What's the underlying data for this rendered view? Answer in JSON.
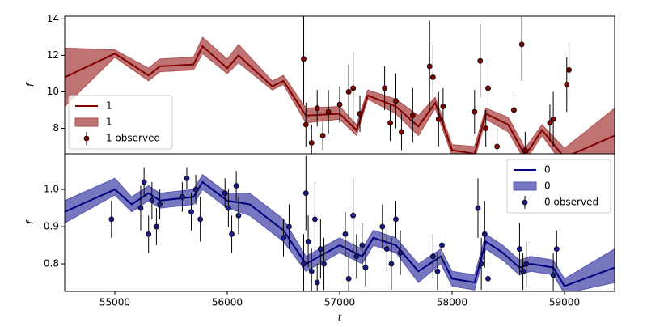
{
  "chart_data": [
    {
      "type": "line",
      "ylabel": "f",
      "xlim": [
        54554,
        59446
      ],
      "ylim": [
        6.6,
        14.15
      ],
      "yticks": [
        8,
        10,
        12,
        14
      ],
      "legend": "lower left",
      "x": [
        54554,
        55000,
        55300,
        55400,
        55700,
        55780,
        56000,
        56100,
        56400,
        56500,
        56700,
        57000,
        57150,
        57250,
        57500,
        57700,
        57850,
        58000,
        58200,
        58300,
        58500,
        58650,
        58800,
        59000,
        59446
      ],
      "series": [
        {
          "name": "1",
          "color": "#800000",
          "values": [
            10.8,
            12.1,
            10.9,
            11.4,
            11.5,
            12.5,
            11.3,
            12.0,
            10.3,
            10.6,
            8.7,
            8.8,
            7.9,
            9.8,
            9.2,
            8.1,
            9.4,
            6.8,
            6.6,
            8.8,
            8.2,
            6.5,
            7.9,
            6.4,
            7.6
          ]
        }
      ],
      "band": {
        "name": "1",
        "color": "#b05050",
        "lower": [
          9.2,
          11.9,
          10.6,
          11.1,
          11.2,
          12.1,
          11.0,
          11.6,
          10.1,
          10.4,
          8.3,
          8.5,
          7.6,
          9.6,
          8.8,
          7.6,
          9.1,
          6.5,
          6.3,
          8.5,
          7.8,
          6.2,
          7.6,
          5.9,
          6.1
        ],
        "upper": [
          12.4,
          12.3,
          11.3,
          11.8,
          11.9,
          13.0,
          11.8,
          12.6,
          10.6,
          10.9,
          9.1,
          9.2,
          8.2,
          10.1,
          9.6,
          8.7,
          9.7,
          7.1,
          7.0,
          9.1,
          8.6,
          6.9,
          8.2,
          6.9,
          9.1
        ]
      },
      "observed": {
        "name": "1 observed",
        "color": "#800000",
        "x": [
          56680,
          56700,
          56750,
          56800,
          56850,
          56900,
          57000,
          57080,
          57120,
          57180,
          57400,
          57450,
          57500,
          57550,
          57650,
          57800,
          57830,
          57880,
          57920,
          58200,
          58250,
          58300,
          58320,
          58400,
          58550,
          58620,
          58650,
          58870,
          58900,
          59020,
          59040
        ],
        "values": [
          11.8,
          8.2,
          7.2,
          9.1,
          7.6,
          8.9,
          9.3,
          10.0,
          10.2,
          8.8,
          10.2,
          8.3,
          9.5,
          7.8,
          8.7,
          11.4,
          10.8,
          8.5,
          9.2,
          8.9,
          11.7,
          8.0,
          10.2,
          7.0,
          9.0,
          12.6,
          6.8,
          8.3,
          8.5,
          10.4,
          11.2
        ],
        "errors": [
          2.5,
          1.2,
          1.0,
          1.0,
          0.8,
          1.2,
          1.0,
          1.5,
          2.0,
          1.0,
          1.2,
          1.0,
          1.5,
          1.0,
          1.5,
          2.5,
          1.8,
          1.5,
          1.0,
          1.2,
          2.0,
          1.0,
          1.5,
          1.0,
          1.0,
          2.0,
          1.0,
          1.0,
          1.5,
          1.5,
          1.5
        ]
      }
    },
    {
      "type": "line",
      "ylabel": "f",
      "xlabel": "t",
      "xlim": [
        54554,
        59446
      ],
      "ylim": [
        0.726,
        1.096
      ],
      "yticks": [
        0.8,
        0.9,
        {
          "value": 1.0,
          "label": "1.0"
        }
      ],
      "xticks": [
        55000,
        56000,
        57000,
        58000,
        59000
      ],
      "legend": "upper right",
      "x": [
        54554,
        55000,
        55150,
        55300,
        55400,
        55700,
        55780,
        56000,
        56200,
        56500,
        56700,
        57000,
        57200,
        57300,
        57500,
        57700,
        57900,
        58000,
        58200,
        58300,
        58450,
        58600,
        58700,
        58900,
        59000,
        59446
      ],
      "series": [
        {
          "name": "0",
          "color": "#00007f",
          "values": [
            0.94,
            1.0,
            0.96,
            0.99,
            0.97,
            0.98,
            1.02,
            0.97,
            0.96,
            0.89,
            0.8,
            0.85,
            0.82,
            0.87,
            0.85,
            0.78,
            0.82,
            0.76,
            0.75,
            0.86,
            0.83,
            0.79,
            0.8,
            0.79,
            0.74,
            0.79
          ]
        }
      ],
      "band": {
        "name": "0",
        "color": "#5555b0",
        "lower": [
          0.91,
          0.985,
          0.94,
          0.97,
          0.95,
          0.96,
          1.0,
          0.95,
          0.93,
          0.86,
          0.78,
          0.83,
          0.8,
          0.85,
          0.83,
          0.75,
          0.8,
          0.74,
          0.73,
          0.84,
          0.81,
          0.77,
          0.78,
          0.77,
          0.72,
          0.75
        ],
        "upper": [
          0.97,
          1.03,
          0.98,
          1.01,
          0.99,
          1.0,
          1.04,
          0.99,
          0.99,
          0.92,
          0.82,
          0.87,
          0.84,
          0.89,
          0.87,
          0.8,
          0.84,
          0.78,
          0.77,
          0.88,
          0.85,
          0.81,
          0.82,
          0.81,
          0.76,
          0.84
        ]
      },
      "observed": {
        "name": "0 observed",
        "color": "#1a1a8c",
        "x": [
          54970,
          55230,
          55260,
          55300,
          55330,
          55370,
          55400,
          55600,
          55640,
          55680,
          55720,
          55760,
          55980,
          56010,
          56040,
          56080,
          56100,
          56500,
          56550,
          56680,
          56700,
          56720,
          56750,
          56780,
          56800,
          56830,
          56860,
          57050,
          57080,
          57120,
          57150,
          57200,
          57230,
          57380,
          57420,
          57460,
          57500,
          57540,
          57830,
          57870,
          57910,
          58230,
          58260,
          58290,
          58320,
          58600,
          58630,
          58660,
          58900,
          58930
        ],
        "values": [
          0.92,
          0.95,
          1.02,
          0.88,
          0.97,
          0.9,
          0.96,
          0.98,
          1.03,
          0.94,
          1.0,
          0.92,
          0.99,
          0.95,
          0.88,
          1.01,
          0.93,
          0.87,
          0.9,
          0.8,
          0.99,
          0.86,
          0.78,
          0.92,
          0.75,
          0.84,
          0.8,
          0.88,
          0.76,
          0.93,
          0.82,
          0.85,
          0.79,
          0.9,
          0.84,
          0.8,
          0.92,
          0.83,
          0.82,
          0.78,
          0.85,
          0.95,
          0.8,
          0.88,
          0.76,
          0.84,
          0.78,
          0.8,
          0.77,
          0.84
        ],
        "errors": [
          0.05,
          0.06,
          0.04,
          0.05,
          0.05,
          0.05,
          0.04,
          0.04,
          0.03,
          0.05,
          0.04,
          0.06,
          0.04,
          0.05,
          0.05,
          0.04,
          0.05,
          0.05,
          0.06,
          0.08,
          0.1,
          0.07,
          0.06,
          0.1,
          0.05,
          0.08,
          0.07,
          0.06,
          0.07,
          0.1,
          0.06,
          0.06,
          0.05,
          0.06,
          0.06,
          0.07,
          0.05,
          0.06,
          0.06,
          0.05,
          0.05,
          0.08,
          0.07,
          0.09,
          0.05,
          0.07,
          0.05,
          0.06,
          0.06,
          0.05
        ]
      }
    }
  ]
}
